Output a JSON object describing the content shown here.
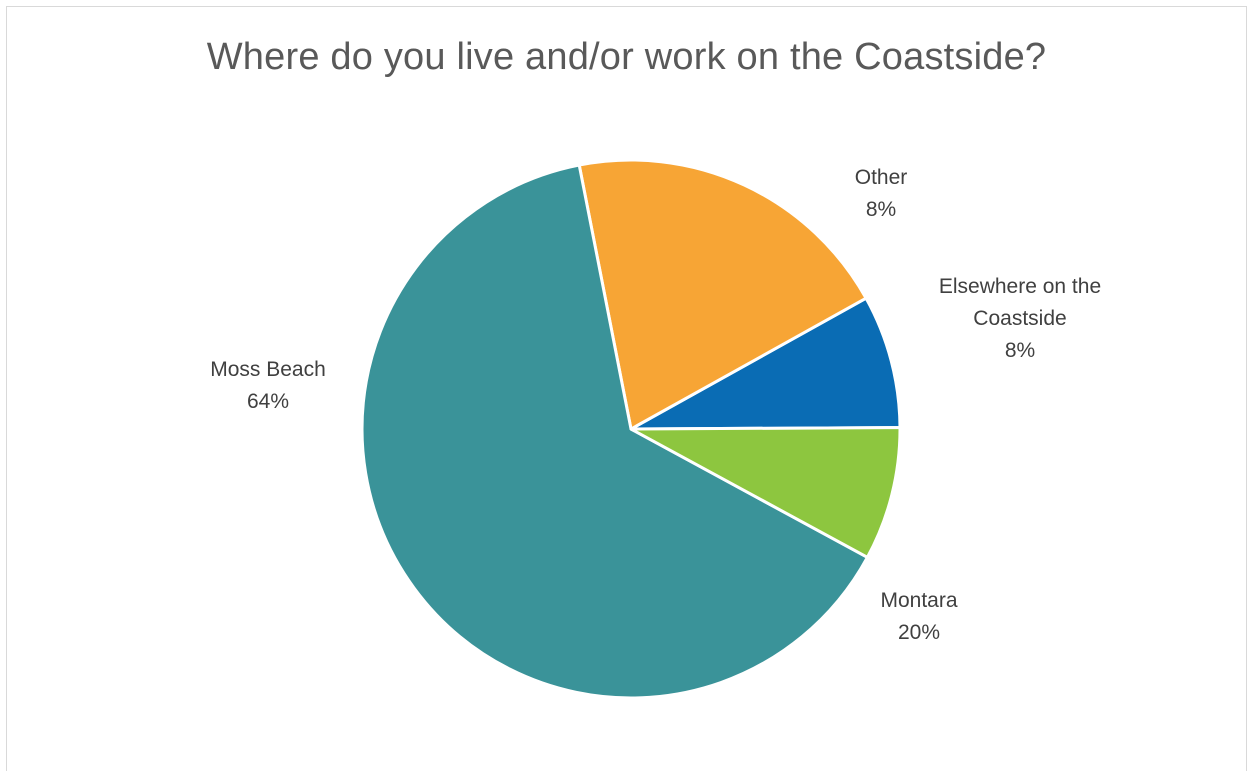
{
  "chart_data": {
    "type": "pie",
    "title": "Where do you live and/or work on the Coastside?",
    "slices": [
      {
        "name": "Elsewhere on the Coastside",
        "label_lines": [
          "Elsewhere on the",
          "Coastside"
        ],
        "value": 8,
        "value_label": "8%",
        "color": "#0a6cb4"
      },
      {
        "name": "Montara",
        "label_lines": [
          "Montara"
        ],
        "value": 20,
        "value_label": "20%",
        "color": "#f7a535"
      },
      {
        "name": "Moss Beach",
        "label_lines": [
          "Moss Beach"
        ],
        "value": 64,
        "value_label": "64%",
        "color": "#3a9399"
      },
      {
        "name": "Other",
        "label_lines": [
          "Other"
        ],
        "value": 8,
        "value_label": "8%",
        "color": "#8dc63f"
      }
    ],
    "legend": "none",
    "data_labels": "category and percentage, outside end"
  }
}
